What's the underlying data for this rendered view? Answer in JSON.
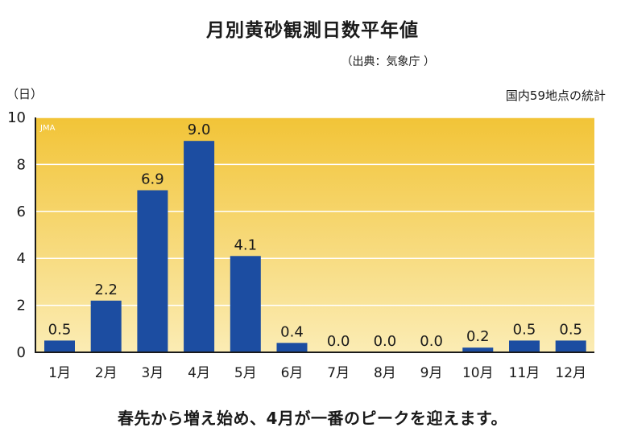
{
  "header": {
    "title": "月別黄砂観測日数平年値",
    "source": "（出典：気象庁 ）",
    "unit": "（日）",
    "note": "国内59地点の統計"
  },
  "watermark": "JMA",
  "caption": "春先から増え始め、4月が一番のピークを迎えます。",
  "colors": {
    "bar": "#1c4da1",
    "gradient_top": "#f2c437",
    "gradient_bottom": "#fbecb4",
    "grid": "#ffffff",
    "axis": "#1a1a1a"
  },
  "chart_data": {
    "type": "bar",
    "title": "月別黄砂観測日数平年値",
    "ylabel": "（日）",
    "categories": [
      "1月",
      "2月",
      "3月",
      "4月",
      "5月",
      "6月",
      "7月",
      "8月",
      "9月",
      "10月",
      "11月",
      "12月"
    ],
    "values": [
      0.5,
      2.2,
      6.9,
      9.0,
      4.1,
      0.4,
      0.0,
      0.0,
      0.0,
      0.2,
      0.5,
      0.5
    ],
    "data_labels": [
      "0.5",
      "2.2",
      "6.9",
      "9.0",
      "4.1",
      "0.4",
      "0.0",
      "0.0",
      "0.0",
      "0.2",
      "0.5",
      "0.5"
    ],
    "ylim": [
      0,
      10
    ],
    "yticks": [
      0,
      2,
      4,
      6,
      8,
      10
    ],
    "grid": true,
    "legend": "none"
  }
}
